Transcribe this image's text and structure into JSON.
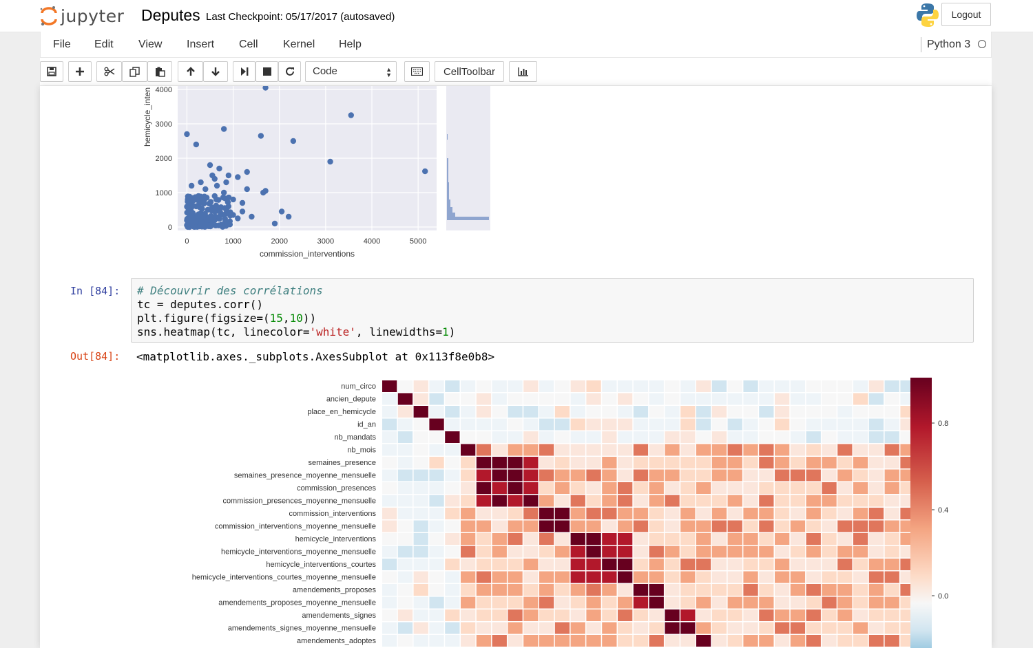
{
  "header": {
    "logo_text": "jupyter",
    "notebook_title": "Deputes",
    "checkpoint": "Last Checkpoint: 05/17/2017 (autosaved)",
    "logout_label": "Logout"
  },
  "menu": {
    "items": [
      "File",
      "Edit",
      "View",
      "Insert",
      "Cell",
      "Kernel",
      "Help"
    ],
    "kernel_name": "Python 3"
  },
  "toolbar": {
    "cell_type": "Code",
    "celltoolbar_label": "CellToolbar",
    "buttons": [
      "save-icon",
      "plus-icon",
      "cut-icon",
      "copy-icon",
      "paste-icon",
      "arrow-up-icon",
      "arrow-down-icon",
      "step-forward-icon",
      "stop-icon",
      "refresh-icon",
      "keyboard-icon",
      "bar-chart-icon"
    ]
  },
  "scatter": {
    "ylabel": "hemicycle_inten",
    "xlabel": "commission_interventions",
    "xticks": [
      "0",
      "1000",
      "2000",
      "3000",
      "4000",
      "5000"
    ],
    "yticks": [
      "0",
      "1000",
      "2000",
      "3000",
      "4000"
    ]
  },
  "cell": {
    "in_prompt": "In [84]:",
    "code": {
      "line1": "# Découvrir des corrélations",
      "line2": "tc = deputes.corr()",
      "line3_a": "plt.figure(figsize=(",
      "line3_n1": "15",
      "line3_c": ",",
      "line3_n2": "10",
      "line3_e": "))",
      "line4_a": "sns.heatmap(tc, linecolor=",
      "line4_s": "'white'",
      "line4_b": ", linewidths=",
      "line4_n": "1",
      "line4_e": ")"
    },
    "out_prompt": "Out[84]:",
    "output_text": "<matplotlib.axes._subplots.AxesSubplot at 0x113f8e0b8>"
  },
  "heatmap": {
    "row_labels": [
      "num_circo",
      "ancien_depute",
      "place_en_hemicycle",
      "id_an",
      "nb_mandats",
      "nb_mois",
      "semaines_presence",
      "semaines_presence_moyenne_mensuelle",
      "commission_presences",
      "commission_presences_moyenne_mensuelle",
      "commission_interventions",
      "commission_interventions_moyenne_mensuelle",
      "hemicycle_interventions",
      "hemicycle_interventions_moyenne_mensuelle",
      "hemicycle_interventions_courtes",
      "hemicycle_interventions_courtes_moyenne_mensuelle",
      "amendements_proposes",
      "amendements_proposes_moyenne_mensuelle",
      "amendements_signes",
      "amendements_signes_moyenne_mensuelle",
      "amendements_adoptes"
    ],
    "colorbar_ticks": [
      "0.8",
      "0.4",
      "0.0"
    ]
  },
  "colors": {
    "prompt_in": "#303f9f",
    "prompt_out": "#d84315",
    "scatter_point": "#4c72b0",
    "scatter_bg": "#eaeaf2"
  },
  "chart_data": [
    {
      "type": "scatter",
      "xlabel": "commission_interventions",
      "ylabel": "hemicycle_inten",
      "xlim": [
        -200,
        5400
      ],
      "ylim": [
        -100,
        4100
      ],
      "grid": true,
      "points": [
        [
          1300,
          4150
        ],
        [
          1700,
          4050
        ],
        [
          800,
          2850
        ],
        [
          0,
          2700
        ],
        [
          200,
          2400
        ],
        [
          1600,
          2650
        ],
        [
          2300,
          2500
        ],
        [
          3550,
          3250
        ],
        [
          3100,
          1900
        ],
        [
          5150,
          1620
        ],
        [
          500,
          1800
        ],
        [
          700,
          1700
        ],
        [
          1300,
          1600
        ],
        [
          1100,
          1450
        ],
        [
          900,
          1500
        ],
        [
          600,
          1400
        ],
        [
          1300,
          1100
        ],
        [
          1650,
          1000
        ],
        [
          1700,
          1050
        ],
        [
          2050,
          450
        ],
        [
          2200,
          300
        ],
        [
          1900,
          100
        ],
        [
          1400,
          300
        ],
        [
          1000,
          350
        ],
        [
          1200,
          450
        ],
        [
          300,
          1300
        ],
        [
          400,
          1100
        ],
        [
          600,
          900
        ],
        [
          800,
          1000
        ],
        [
          100,
          800
        ],
        [
          200,
          600
        ],
        [
          500,
          700
        ],
        [
          700,
          500
        ],
        [
          900,
          600
        ],
        [
          300,
          400
        ],
        [
          100,
          200
        ],
        [
          400,
          300
        ],
        [
          600,
          200
        ],
        [
          200,
          100
        ],
        [
          0,
          50
        ],
        [
          800,
          350
        ],
        [
          1100,
          250
        ],
        [
          50,
          400
        ],
        [
          150,
          150
        ],
        [
          350,
          50
        ],
        [
          500,
          150
        ],
        [
          700,
          300
        ],
        [
          250,
          900
        ],
        [
          450,
          500
        ],
        [
          650,
          1200
        ],
        [
          1000,
          800
        ],
        [
          1200,
          700
        ],
        [
          100,
          1200
        ],
        [
          550,
          1500
        ],
        [
          850,
          1300
        ]
      ]
    },
    {
      "type": "heatmap",
      "title": "",
      "colorbar_ticks": [
        0.8,
        0.4,
        0.0
      ],
      "rows": [
        "num_circo",
        "ancien_depute",
        "place_en_hemicycle",
        "id_an",
        "nb_mandats",
        "nb_mois",
        "semaines_presence",
        "semaines_presence_moyenne_mensuelle",
        "commission_presences",
        "commission_presences_moyenne_mensuelle",
        "commission_interventions",
        "commission_interventions_moyenne_mensuelle",
        "hemicycle_interventions",
        "hemicycle_interventions_moyenne_mensuelle",
        "hemicycle_interventions_courtes",
        "hemicycle_interventions_courtes_moyenne_mensuelle",
        "amendements_proposes",
        "amendements_proposes_moyenne_mensuelle",
        "amendements_signes",
        "amendements_signes_moyenne_mensuelle",
        "amendements_adoptes"
      ],
      "n_cols": 34
    }
  ]
}
